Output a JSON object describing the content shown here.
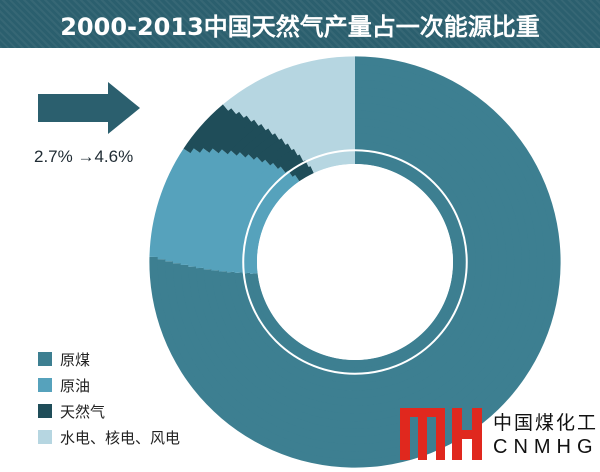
{
  "chart_data": {
    "type": "pie",
    "title": "2000-2013中国天然气产量占一次能源比重",
    "annotation": "2.7% →4.6%",
    "years": [
      "2000",
      "2013"
    ],
    "series": [
      {
        "name": "原煤",
        "values": [
          73.2,
          75.4
        ],
        "color": "#3d7f91"
      },
      {
        "name": "原油",
        "values": [
          17.2,
          8.9
        ],
        "color": "#56a2bc"
      },
      {
        "name": "天然气",
        "values": [
          2.7,
          4.6
        ],
        "color": "#1f4d59"
      },
      {
        "name": "水电、核电、风电",
        "values": [
          6.9,
          11.1
        ],
        "color": "#b6d6e1"
      }
    ],
    "legend_position": "bottom-left"
  },
  "logo": {
    "cn": "中国煤化工",
    "en": "CNMHG",
    "color": "#e0281e"
  }
}
